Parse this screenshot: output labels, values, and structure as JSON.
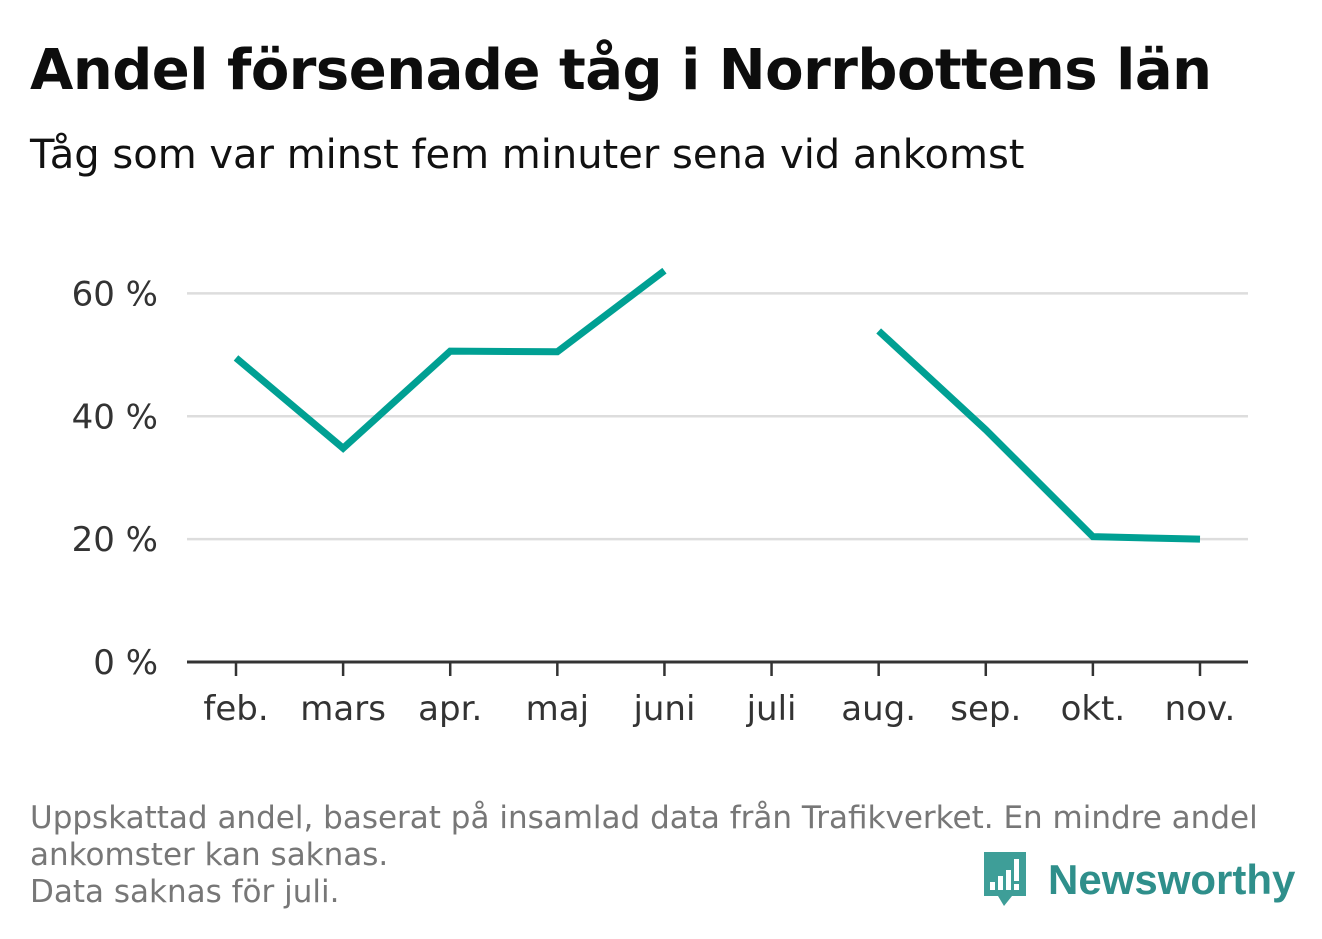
{
  "header": {
    "title": "Andel försenade tåg i Norrbottens län",
    "subtitle": "Tåg som var minst fem minuter sena vid ankomst"
  },
  "footer": {
    "note_line1": "Uppskattad andel, baserat på insamlad data från Trafikverket. En mindre andel",
    "note_line2": "ankomster kan saknas.",
    "note_line3": "Data saknas för juli.",
    "brand": "Newsworthy"
  },
  "colors": {
    "line": "#00a093",
    "grid": "#dddddd",
    "axis": "#333333",
    "brand": "#2f8f8b"
  },
  "chart_data": {
    "type": "line",
    "categories": [
      "feb.",
      "mars",
      "apr.",
      "maj",
      "juni",
      "juli",
      "aug.",
      "sep.",
      "okt.",
      "nov."
    ],
    "series": [
      {
        "values": [
          49.5,
          34.8,
          50.6,
          50.5,
          63.7,
          null,
          53.9,
          37.8,
          20.4,
          20.0
        ]
      }
    ],
    "ylim": [
      0,
      70
    ],
    "yticks": [
      0,
      20,
      40,
      60
    ],
    "ytick_labels": [
      "0 %",
      "20 %",
      "40 %",
      "60 %"
    ],
    "grid": true,
    "xlabel": "",
    "ylabel": ""
  }
}
